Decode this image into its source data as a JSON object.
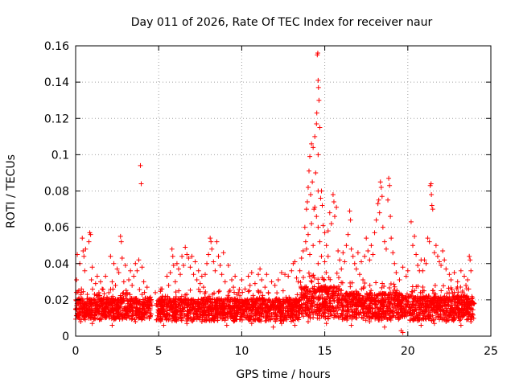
{
  "chart_data": {
    "type": "scatter",
    "title": "Day 011 of 2026, Rate Of TEC Index for receiver naur",
    "xlabel": "GPS time / hours",
    "ylabel": "ROTI / TECUs",
    "xlim": [
      0,
      25
    ],
    "ylim": [
      0,
      0.16
    ],
    "xticks": [
      0,
      5,
      10,
      15,
      20,
      25
    ],
    "yticks": [
      0,
      0.02,
      0.04,
      0.06,
      0.08,
      0.1,
      0.12,
      0.14,
      0.16
    ],
    "xtick_labels": [
      "0",
      "5",
      "10",
      "15",
      "20",
      "25"
    ],
    "ytick_labels": [
      "0",
      "0.02",
      "0.04",
      "0.06",
      "0.08",
      "0.1",
      "0.12",
      "0.14",
      "0.16"
    ],
    "grid": true,
    "marker": "+",
    "color": "#ff0000",
    "series": [
      {
        "name": "ROTI",
        "points": [
          [
            0.0,
            0.015
          ],
          [
            0.05,
            0.031
          ],
          [
            0.1,
            0.045
          ],
          [
            0.15,
            0.012
          ],
          [
            0.2,
            0.021
          ],
          [
            0.25,
            0.04
          ],
          [
            0.3,
            0.018
          ],
          [
            0.35,
            0.026
          ],
          [
            0.4,
            0.054
          ],
          [
            0.45,
            0.047
          ],
          [
            0.5,
            0.044
          ],
          [
            0.55,
            0.036
          ],
          [
            0.6,
            0.048
          ],
          [
            0.7,
            0.023
          ],
          [
            0.8,
            0.052
          ],
          [
            0.85,
            0.057
          ],
          [
            0.9,
            0.056
          ],
          [
            0.95,
            0.031
          ],
          [
            1.0,
            0.038
          ],
          [
            1.1,
            0.02
          ],
          [
            1.2,
            0.029
          ],
          [
            1.3,
            0.033
          ],
          [
            1.4,
            0.024
          ],
          [
            1.5,
            0.03
          ],
          [
            1.6,
            0.026
          ],
          [
            1.7,
            0.021
          ],
          [
            1.8,
            0.033
          ],
          [
            1.9,
            0.019
          ],
          [
            2.0,
            0.024
          ],
          [
            2.1,
            0.044
          ],
          [
            2.2,
            0.03
          ],
          [
            2.3,
            0.04
          ],
          [
            2.4,
            0.028
          ],
          [
            2.5,
            0.037
          ],
          [
            2.6,
            0.035
          ],
          [
            2.7,
            0.055
          ],
          [
            2.75,
            0.052
          ],
          [
            2.8,
            0.043
          ],
          [
            2.9,
            0.03
          ],
          [
            3.0,
            0.039
          ],
          [
            3.1,
            0.024
          ],
          [
            3.2,
            0.031
          ],
          [
            3.3,
            0.036
          ],
          [
            3.4,
            0.028
          ],
          [
            3.5,
            0.033
          ],
          [
            3.6,
            0.04
          ],
          [
            3.7,
            0.036
          ],
          [
            3.8,
            0.042
          ],
          [
            3.9,
            0.094
          ],
          [
            3.95,
            0.084
          ],
          [
            4.0,
            0.038
          ],
          [
            4.1,
            0.03
          ],
          [
            4.2,
            0.021
          ],
          [
            4.3,
            0.027
          ],
          [
            4.6,
            0.017
          ],
          [
            4.8,
            0.024
          ],
          [
            5.0,
            0.019
          ],
          [
            5.2,
            0.026
          ],
          [
            5.4,
            0.022
          ],
          [
            5.5,
            0.033
          ],
          [
            5.6,
            0.028
          ],
          [
            5.7,
            0.035
          ],
          [
            5.8,
            0.048
          ],
          [
            5.85,
            0.044
          ],
          [
            5.9,
            0.039
          ],
          [
            6.0,
            0.03
          ],
          [
            6.1,
            0.04
          ],
          [
            6.2,
            0.037
          ],
          [
            6.3,
            0.034
          ],
          [
            6.4,
            0.044
          ],
          [
            6.5,
            0.039
          ],
          [
            6.6,
            0.049
          ],
          [
            6.7,
            0.045
          ],
          [
            6.8,
            0.043
          ],
          [
            6.9,
            0.038
          ],
          [
            7.0,
            0.044
          ],
          [
            7.1,
            0.034
          ],
          [
            7.2,
            0.041
          ],
          [
            7.3,
            0.031
          ],
          [
            7.4,
            0.036
          ],
          [
            7.5,
            0.029
          ],
          [
            7.6,
            0.033
          ],
          [
            7.7,
            0.027
          ],
          [
            7.8,
            0.034
          ],
          [
            7.9,
            0.04
          ],
          [
            8.0,
            0.045
          ],
          [
            8.1,
            0.054
          ],
          [
            8.15,
            0.052
          ],
          [
            8.2,
            0.048
          ],
          [
            8.3,
            0.041
          ],
          [
            8.4,
            0.036
          ],
          [
            8.5,
            0.052
          ],
          [
            8.6,
            0.044
          ],
          [
            8.7,
            0.039
          ],
          [
            8.8,
            0.034
          ],
          [
            8.9,
            0.046
          ],
          [
            9.0,
            0.03
          ],
          [
            9.2,
            0.039
          ],
          [
            9.4,
            0.031
          ],
          [
            9.5,
            0.027
          ],
          [
            9.6,
            0.033
          ],
          [
            9.8,
            0.024
          ],
          [
            10.0,
            0.031
          ],
          [
            10.2,
            0.026
          ],
          [
            10.4,
            0.033
          ],
          [
            10.5,
            0.028
          ],
          [
            10.6,
            0.035
          ],
          [
            10.8,
            0.029
          ],
          [
            11.0,
            0.034
          ],
          [
            11.1,
            0.037
          ],
          [
            11.2,
            0.031
          ],
          [
            11.4,
            0.027
          ],
          [
            11.5,
            0.034
          ],
          [
            11.6,
            0.024
          ],
          [
            11.8,
            0.03
          ],
          [
            12.0,
            0.028
          ],
          [
            12.2,
            0.031
          ],
          [
            12.4,
            0.035
          ],
          [
            12.6,
            0.034
          ],
          [
            12.8,
            0.033
          ],
          [
            13.0,
            0.036
          ],
          [
            13.1,
            0.04
          ],
          [
            13.2,
            0.041
          ],
          [
            13.3,
            0.032
          ],
          [
            13.4,
            0.03
          ],
          [
            13.5,
            0.036
          ],
          [
            13.6,
            0.043
          ],
          [
            13.7,
            0.047
          ],
          [
            13.8,
            0.06
          ],
          [
            13.85,
            0.052
          ],
          [
            13.9,
            0.07
          ],
          [
            13.95,
            0.074
          ],
          [
            14.0,
            0.082
          ],
          [
            14.05,
            0.091
          ],
          [
            14.1,
            0.099
          ],
          [
            14.15,
            0.078
          ],
          [
            14.2,
            0.106
          ],
          [
            14.25,
            0.085
          ],
          [
            14.3,
            0.104
          ],
          [
            14.35,
            0.07
          ],
          [
            14.4,
            0.11
          ],
          [
            14.45,
            0.09
          ],
          [
            14.5,
            0.117
          ],
          [
            14.52,
            0.123
          ],
          [
            14.55,
            0.155
          ],
          [
            14.58,
            0.156
          ],
          [
            14.6,
            0.141
          ],
          [
            14.62,
            0.137
          ],
          [
            14.65,
            0.13
          ],
          [
            14.7,
            0.115
          ],
          [
            14.75,
            0.076
          ],
          [
            14.8,
            0.08
          ],
          [
            14.85,
            0.072
          ],
          [
            14.9,
            0.061
          ],
          [
            15.0,
            0.057
          ],
          [
            15.1,
            0.05
          ],
          [
            15.2,
            0.044
          ],
          [
            15.3,
            0.068
          ],
          [
            15.4,
            0.062
          ],
          [
            15.5,
            0.078
          ],
          [
            15.55,
            0.074
          ],
          [
            15.6,
            0.066
          ],
          [
            15.7,
            0.071
          ],
          [
            15.8,
            0.047
          ],
          [
            15.9,
            0.042
          ],
          [
            16.0,
            0.037
          ],
          [
            16.1,
            0.046
          ],
          [
            16.2,
            0.041
          ],
          [
            16.3,
            0.05
          ],
          [
            16.4,
            0.056
          ],
          [
            16.5,
            0.069
          ],
          [
            16.55,
            0.064
          ],
          [
            16.6,
            0.048
          ],
          [
            16.7,
            0.044
          ],
          [
            16.8,
            0.04
          ],
          [
            16.9,
            0.037
          ],
          [
            17.0,
            0.046
          ],
          [
            17.1,
            0.034
          ],
          [
            17.2,
            0.041
          ],
          [
            17.3,
            0.031
          ],
          [
            17.4,
            0.044
          ],
          [
            17.5,
            0.054
          ],
          [
            17.6,
            0.047
          ],
          [
            17.7,
            0.042
          ],
          [
            17.8,
            0.05
          ],
          [
            17.9,
            0.045
          ],
          [
            18.0,
            0.057
          ],
          [
            18.1,
            0.064
          ],
          [
            18.2,
            0.073
          ],
          [
            18.25,
            0.075
          ],
          [
            18.3,
            0.068
          ],
          [
            18.35,
            0.085
          ],
          [
            18.4,
            0.082
          ],
          [
            18.45,
            0.077
          ],
          [
            18.5,
            0.06
          ],
          [
            18.6,
            0.052
          ],
          [
            18.7,
            0.048
          ],
          [
            18.8,
            0.075
          ],
          [
            18.85,
            0.087
          ],
          [
            18.9,
            0.083
          ],
          [
            18.95,
            0.066
          ],
          [
            19.0,
            0.054
          ],
          [
            19.1,
            0.046
          ],
          [
            19.2,
            0.04
          ],
          [
            19.3,
            0.035
          ],
          [
            19.5,
            0.031
          ],
          [
            19.7,
            0.038
          ],
          [
            19.9,
            0.033
          ],
          [
            20.0,
            0.036
          ],
          [
            20.2,
            0.063
          ],
          [
            20.3,
            0.05
          ],
          [
            20.4,
            0.055
          ],
          [
            20.5,
            0.045
          ],
          [
            20.6,
            0.039
          ],
          [
            20.7,
            0.036
          ],
          [
            20.8,
            0.042
          ],
          [
            20.9,
            0.036
          ],
          [
            21.0,
            0.042
          ],
          [
            21.1,
            0.04
          ],
          [
            21.2,
            0.054
          ],
          [
            21.3,
            0.052
          ],
          [
            21.35,
            0.083
          ],
          [
            21.4,
            0.084
          ],
          [
            21.42,
            0.078
          ],
          [
            21.45,
            0.072
          ],
          [
            21.5,
            0.07
          ],
          [
            21.6,
            0.046
          ],
          [
            21.7,
            0.05
          ],
          [
            21.8,
            0.044
          ],
          [
            21.9,
            0.041
          ],
          [
            22.0,
            0.039
          ],
          [
            22.1,
            0.047
          ],
          [
            22.2,
            0.042
          ],
          [
            22.3,
            0.037
          ],
          [
            22.5,
            0.034
          ],
          [
            22.6,
            0.031
          ],
          [
            22.8,
            0.035
          ],
          [
            23.0,
            0.03
          ],
          [
            23.2,
            0.036
          ],
          [
            23.4,
            0.033
          ],
          [
            23.5,
            0.028
          ],
          [
            23.6,
            0.031
          ],
          [
            23.7,
            0.044
          ],
          [
            23.75,
            0.042
          ],
          [
            23.8,
            0.036
          ],
          [
            23.9,
            0.021
          ],
          [
            0.3,
            0.008
          ],
          [
            1.0,
            0.007
          ],
          [
            2.2,
            0.006
          ],
          [
            3.6,
            0.008
          ],
          [
            5.3,
            0.006
          ],
          [
            6.7,
            0.007
          ],
          [
            7.6,
            0.008
          ],
          [
            9.1,
            0.006
          ],
          [
            10.6,
            0.007
          ],
          [
            11.9,
            0.005
          ],
          [
            12.4,
            0.007
          ],
          [
            13.2,
            0.006
          ],
          [
            14.0,
            0.008
          ],
          [
            15.1,
            0.007
          ],
          [
            16.6,
            0.006
          ],
          [
            17.7,
            0.008
          ],
          [
            18.6,
            0.005
          ],
          [
            19.6,
            0.003
          ],
          [
            19.7,
            0.002
          ],
          [
            20.8,
            0.006
          ],
          [
            21.6,
            0.007
          ],
          [
            22.3,
            0.008
          ],
          [
            23.2,
            0.006
          ],
          [
            23.8,
            0.008
          ],
          [
            14.6,
            0.02
          ],
          [
            14.6,
            0.04
          ],
          [
            14.6,
            0.06
          ],
          [
            14.6,
            0.08
          ],
          [
            14.6,
            0.1
          ],
          [
            14.3,
            0.05
          ],
          [
            14.2,
            0.062
          ],
          [
            14.1,
            0.045
          ],
          [
            14.4,
            0.071
          ],
          [
            14.5,
            0.066
          ],
          [
            14.7,
            0.052
          ],
          [
            14.8,
            0.044
          ],
          [
            14.0,
            0.056
          ],
          [
            13.9,
            0.048
          ],
          [
            15.0,
            0.041
          ],
          [
            15.2,
            0.058
          ]
        ]
      }
    ],
    "bands": [
      {
        "from": 0.0,
        "to": 4.55,
        "low": 0.006,
        "high": 0.026
      },
      {
        "from": 4.85,
        "to": 13.5,
        "low": 0.005,
        "high": 0.026
      },
      {
        "from": 13.5,
        "to": 16.0,
        "low": 0.005,
        "high": 0.035
      },
      {
        "from": 16.0,
        "to": 20.0,
        "low": 0.005,
        "high": 0.03
      },
      {
        "from": 20.0,
        "to": 24.0,
        "low": 0.005,
        "high": 0.028
      }
    ]
  }
}
